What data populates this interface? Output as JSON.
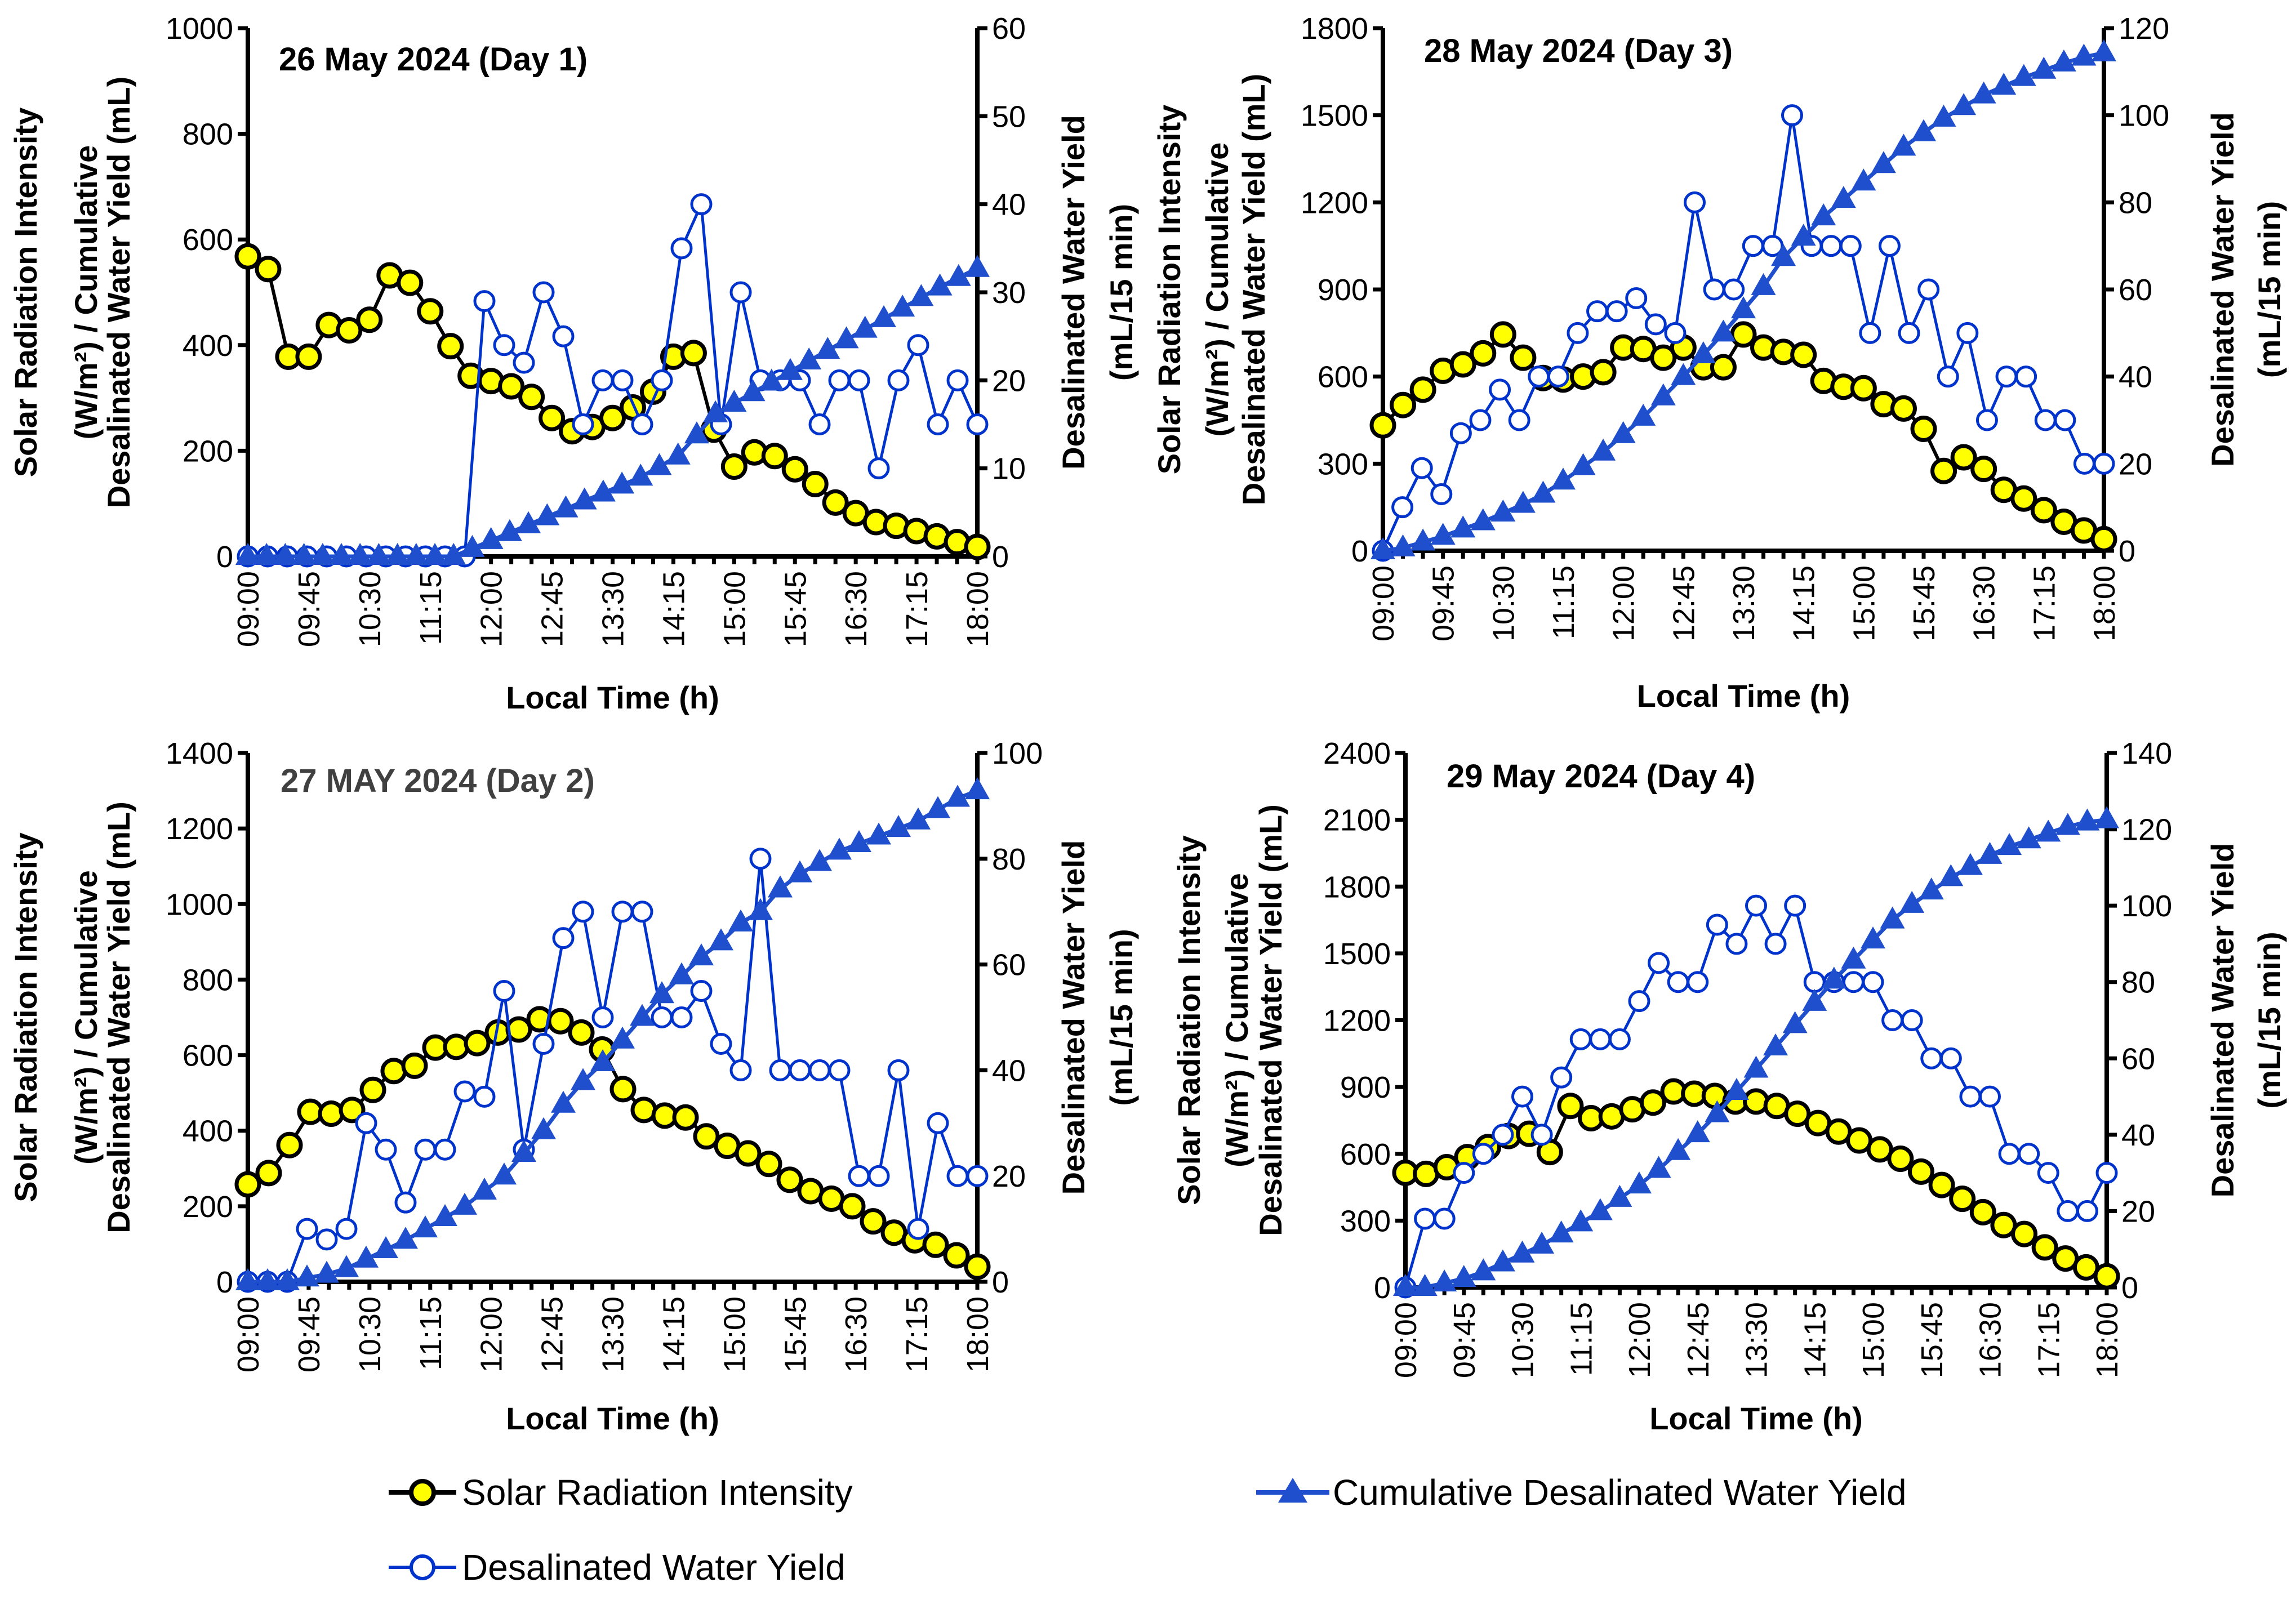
{
  "figure_title": "Solar radiation and desalinated water yield, 26-29 May 2024",
  "colors": {
    "solar": "#FFFF00",
    "solar_outline": "#000000",
    "yield": "#0033CC",
    "cumulative": "#1F4FCC",
    "axis": "#000000",
    "title_day2": "#404040"
  },
  "legend": {
    "solar": "Solar Radiation Intensity",
    "cumulative": "Cumulative Desalinated Water Yield",
    "yield": "Desalinated Water Yield"
  },
  "chart_data": [
    {
      "id": "day1",
      "type": "line",
      "title": "26 May 2024 (Day 1)",
      "xlabel": "Local Time (h)",
      "ylabel_left": [
        "Solar Radiation Intensity",
        "(W/m²) / Cumulative",
        "Desalinated Water Yield (mL)"
      ],
      "ylabel_right": [
        "Desalinated Water Yield",
        "(mL/15 min)"
      ],
      "ylim_left": [
        0,
        1000
      ],
      "yticks_left": [
        0,
        200,
        400,
        600,
        800,
        1000
      ],
      "ylim_right": [
        0,
        60
      ],
      "yticks_right": [
        0,
        10,
        20,
        30,
        40,
        50,
        60
      ],
      "x_tick_labels": [
        "09:00",
        "09:45",
        "10:30",
        "11:15",
        "12:00",
        "12:45",
        "13:30",
        "14:15",
        "15:00",
        "15:45",
        "16:30",
        "17:15",
        "18:00"
      ],
      "x_interval_min": 15,
      "series": [
        {
          "name": "Solar Radiation Intensity",
          "axis": "left",
          "values": [
            568,
            544,
            378,
            378,
            438,
            428,
            448,
            532,
            518,
            464,
            398,
            342,
            332,
            322,
            302,
            262,
            237,
            245,
            262,
            282,
            312,
            378,
            385,
            240,
            170,
            197,
            190,
            165,
            137,
            102,
            82,
            65,
            58,
            48,
            38,
            27,
            18
          ]
        },
        {
          "name": "Desalinated Water Yield",
          "axis": "right",
          "values": [
            0,
            0,
            0,
            0,
            0,
            0,
            0,
            0,
            0,
            0,
            0,
            0,
            29,
            24,
            22,
            30,
            25,
            15,
            20,
            20,
            15,
            20,
            35,
            40,
            15,
            30,
            20,
            20,
            20,
            15,
            20,
            20,
            10,
            20,
            24,
            15,
            20,
            15
          ]
        },
        {
          "name": "Cumulative Desalinated Water Yield",
          "axis": "left",
          "values": [
            0,
            0,
            0,
            0,
            0,
            0,
            0,
            0,
            0,
            0,
            0,
            0,
            15,
            30,
            45,
            60,
            75,
            90,
            105,
            120,
            135,
            150,
            170,
            190,
            230,
            270,
            290,
            310,
            330,
            350,
            370,
            390,
            410,
            430,
            450,
            470,
            490,
            510,
            528,
            545
          ]
        }
      ]
    },
    {
      "id": "day3",
      "type": "line",
      "title": "28 May 2024 (Day 3)",
      "xlabel": "Local Time (h)",
      "ylabel_left": [
        "Solar Radiation Intensity",
        "(W/m²) / Cumulative",
        "Desalinated Water Yield (mL)"
      ],
      "ylabel_right": [
        "Desalinated Water Yield",
        "(mL/15 min)"
      ],
      "ylim_left": [
        0,
        1800
      ],
      "yticks_left": [
        0,
        300,
        600,
        900,
        1200,
        1500,
        1800
      ],
      "ylim_right": [
        0,
        120
      ],
      "yticks_right": [
        0,
        20,
        40,
        60,
        80,
        100,
        120
      ],
      "x_tick_labels": [
        "09:00",
        "09:45",
        "10:30",
        "11:15",
        "12:00",
        "12:45",
        "13:30",
        "14:15",
        "15:00",
        "15:45",
        "16:30",
        "17:15",
        "18:00"
      ],
      "x_interval_min": 15,
      "series": [
        {
          "name": "Solar Radiation Intensity",
          "axis": "left",
          "values": [
            432,
            502,
            555,
            620,
            642,
            680,
            745,
            665,
            595,
            590,
            600,
            615,
            700,
            695,
            665,
            700,
            632,
            632,
            745,
            700,
            685,
            675,
            585,
            565,
            560,
            505,
            490,
            420,
            275,
            322,
            282,
            210,
            180,
            140,
            100,
            70,
            40
          ]
        },
        {
          "name": "Desalinated Water Yield",
          "axis": "right",
          "values": [
            0,
            10,
            19,
            13,
            27,
            30,
            37,
            30,
            40,
            40,
            50,
            55,
            55,
            58,
            52,
            50,
            80,
            60,
            60,
            70,
            70,
            100,
            70,
            70,
            70,
            50,
            70,
            50,
            60,
            40,
            50,
            30,
            40,
            40,
            30,
            30,
            20,
            20
          ]
        },
        {
          "name": "Cumulative Desalinated Water Yield",
          "axis": "left",
          "values": [
            0,
            10,
            30,
            50,
            75,
            100,
            130,
            160,
            195,
            240,
            290,
            340,
            400,
            460,
            530,
            600,
            675,
            750,
            830,
            910,
            1010,
            1080,
            1150,
            1210,
            1270,
            1330,
            1390,
            1440,
            1490,
            1530,
            1570,
            1600,
            1630,
            1655,
            1680,
            1700,
            1715
          ]
        }
      ]
    },
    {
      "id": "day2",
      "type": "line",
      "title": "27 MAY 2024 (Day 2)",
      "xlabel": "Local Time (h)",
      "ylabel_left": [
        "Solar Radiation Intensity",
        "(W/m²) / Cumulative",
        "Desalinated Water Yield (mL)"
      ],
      "ylabel_right": [
        "Desalinated Water Yield",
        "(mL/15 min)"
      ],
      "ylim_left": [
        0,
        1400
      ],
      "yticks_left": [
        0,
        200,
        400,
        600,
        800,
        1000,
        1200,
        1400
      ],
      "ylim_right": [
        0,
        100
      ],
      "yticks_right": [
        0,
        20,
        40,
        60,
        80,
        100
      ],
      "x_tick_labels": [
        "09:00",
        "09:45",
        "10:30",
        "11:15",
        "12:00",
        "12:45",
        "13:30",
        "14:15",
        "15:00",
        "15:45",
        "16:30",
        "17:15",
        "18:00"
      ],
      "x_interval_min": 15,
      "series": [
        {
          "name": "Solar Radiation Intensity",
          "axis": "left",
          "values": [
            258,
            288,
            362,
            450,
            445,
            455,
            508,
            558,
            572,
            620,
            622,
            632,
            660,
            668,
            695,
            690,
            660,
            615,
            510,
            455,
            440,
            435,
            385,
            360,
            340,
            312,
            270,
            240,
            220,
            200,
            160,
            130,
            110,
            98,
            70,
            40
          ]
        },
        {
          "name": "Desalinated Water Yield",
          "axis": "right",
          "values": [
            0,
            0,
            0,
            10,
            8,
            10,
            30,
            25,
            15,
            25,
            25,
            36,
            35,
            55,
            25,
            45,
            65,
            70,
            50,
            70,
            70,
            50,
            50,
            55,
            45,
            40,
            80,
            40,
            40,
            40,
            40,
            20,
            20,
            40,
            10,
            30,
            20,
            20
          ]
        },
        {
          "name": "Cumulative Desalinated Water Yield",
          "axis": "left",
          "values": [
            0,
            0,
            0,
            10,
            20,
            35,
            60,
            85,
            110,
            140,
            170,
            200,
            240,
            280,
            340,
            400,
            470,
            530,
            580,
            640,
            700,
            760,
            810,
            860,
            900,
            950,
            980,
            1040,
            1080,
            1110,
            1140,
            1160,
            1180,
            1200,
            1220,
            1250,
            1280,
            1300
          ]
        }
      ]
    },
    {
      "id": "day4",
      "type": "line",
      "title": "29 May 2024 (Day 4)",
      "xlabel": "Local Time (h)",
      "ylabel_left": [
        "Solar Radiation Intensity",
        "(W/m²) / Cumulative",
        "Desalinated Water Yield (mL)"
      ],
      "ylabel_right": [
        "Desalinated Water Yield",
        "(mL/15 min)"
      ],
      "ylim_left": [
        0,
        2400
      ],
      "yticks_left": [
        0,
        300,
        600,
        900,
        1200,
        1500,
        1800,
        2100,
        2400
      ],
      "ylim_right": [
        0,
        140
      ],
      "yticks_right": [
        0,
        20,
        40,
        60,
        80,
        100,
        120,
        140
      ],
      "x_tick_labels": [
        "09:00",
        "09:45",
        "10:30",
        "11:15",
        "12:00",
        "12:45",
        "13:30",
        "14:15",
        "15:00",
        "15:45",
        "16:30",
        "17:15",
        "18:00"
      ],
      "x_interval_min": 15,
      "series": [
        {
          "name": "Solar Radiation Intensity",
          "axis": "left",
          "values": [
            515,
            510,
            540,
            585,
            630,
            680,
            690,
            608,
            815,
            760,
            768,
            800,
            830,
            880,
            870,
            860,
            835,
            835,
            815,
            780,
            738,
            700,
            660,
            620,
            578,
            520,
            460,
            398,
            338,
            280,
            240,
            180,
            130,
            90,
            50
          ]
        },
        {
          "name": "Desalinated Water Yield",
          "axis": "right",
          "values": [
            0,
            18,
            18,
            30,
            35,
            40,
            50,
            40,
            55,
            65,
            65,
            65,
            75,
            85,
            80,
            80,
            95,
            90,
            100,
            90,
            100,
            80,
            80,
            80,
            80,
            70,
            70,
            60,
            60,
            50,
            50,
            35,
            35,
            30,
            20,
            20,
            30
          ]
        },
        {
          "name": "Cumulative Desalinated Water Yield",
          "axis": "left",
          "values": [
            0,
            0,
            20,
            40,
            70,
            110,
            150,
            190,
            240,
            290,
            340,
            400,
            460,
            530,
            610,
            690,
            780,
            880,
            980,
            1080,
            1180,
            1280,
            1380,
            1470,
            1560,
            1650,
            1720,
            1780,
            1840,
            1890,
            1940,
            1980,
            2010,
            2040,
            2070,
            2090,
            2100
          ]
        }
      ]
    }
  ]
}
